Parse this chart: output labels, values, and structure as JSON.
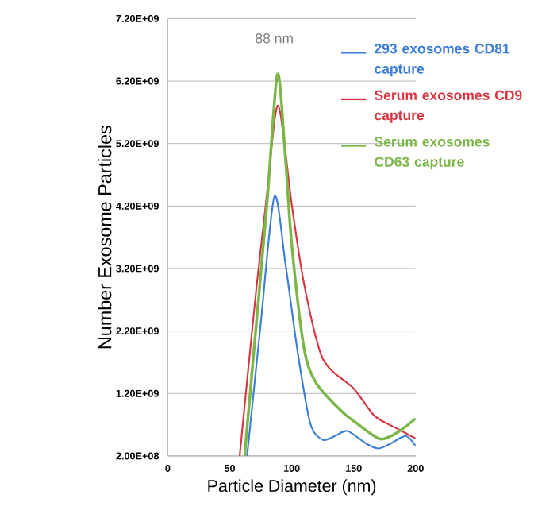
{
  "chart_data": {
    "type": "line",
    "xlabel": "Particle Diameter (nm)",
    "ylabel": "Number Exosome Particles",
    "annotations": [
      "88 nm"
    ],
    "series": [
      {
        "name": "293 exosomes CD81 capture",
        "color": "#3b7dd8",
        "x": [
          64,
          75,
          86,
          95,
          105,
          115,
          125,
          135,
          145,
          160,
          170,
          180,
          192,
          200
        ],
        "values": [
          200000000.0,
          2320000000.0,
          4350000000.0,
          3270000000.0,
          1840000000.0,
          720000000.0,
          460000000.0,
          520000000.0,
          600000000.0,
          400000000.0,
          320000000.0,
          400000000.0,
          520000000.0,
          360000000.0
        ]
      },
      {
        "name": "Serum exosomes CD9 capture",
        "color": "#d9343f",
        "x": [
          58,
          71,
          80,
          89,
          100,
          110,
          125,
          150,
          167,
          185,
          200
        ],
        "values": [
          200000000.0,
          2790000000.0,
          4390000000.0,
          5810000000.0,
          4230000000.0,
          2950000000.0,
          1760000000.0,
          1280000000.0,
          840000000.0,
          640000000.0,
          480000000.0
        ]
      },
      {
        "name": "Serum exosomes CD63 capture",
        "color": "#7ab648",
        "x": [
          62,
          70,
          80,
          88.5,
          95,
          100,
          110,
          120,
          140,
          150,
          170,
          180,
          190,
          200
        ],
        "values": [
          200000000.0,
          2000000000.0,
          4230000000.0,
          6310000000.0,
          4950000000.0,
          3590000000.0,
          1920000000.0,
          1360000000.0,
          920000000.0,
          760000000.0,
          480000000.0,
          520000000.0,
          640000000.0,
          800000000.0
        ]
      }
    ],
    "xlim": [
      0,
      200
    ],
    "xticks": [
      0,
      50,
      100,
      150,
      200
    ],
    "ylim": [
      200000000.0,
      7200000000.0
    ],
    "yticks": [
      {
        "value": 200000000.0,
        "label": "2.00E+08"
      },
      {
        "value": 1200000000.0,
        "label": "1.20E+09"
      },
      {
        "value": 2200000000.0,
        "label": "2.20E+09"
      },
      {
        "value": 3200000000.0,
        "label": "3.20E+09"
      },
      {
        "value": 4200000000.0,
        "label": "4.20E+09"
      },
      {
        "value": 5200000000.0,
        "label": "5.20E+09"
      },
      {
        "value": 6200000000.0,
        "label": "6.20E+09"
      },
      {
        "value": 7200000000.0,
        "label": "7.20E+09"
      }
    ],
    "grid": "y",
    "legend": "top right",
    "marker": "none",
    "line_style": "solid"
  }
}
